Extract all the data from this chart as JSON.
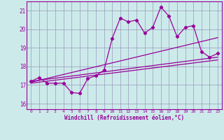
{
  "xlabel": "Windchill (Refroidissement éolien,°C)",
  "xlim": [
    -0.5,
    23.5
  ],
  "ylim": [
    15.7,
    21.5
  ],
  "yticks": [
    16,
    17,
    18,
    19,
    20,
    21
  ],
  "xticks": [
    0,
    1,
    2,
    3,
    4,
    5,
    6,
    7,
    8,
    9,
    10,
    11,
    12,
    13,
    14,
    15,
    16,
    17,
    18,
    19,
    20,
    21,
    22,
    23
  ],
  "bg_color": "#cceaea",
  "grid_color": "#9999bb",
  "line_color": "#990099",
  "data_x": [
    0,
    1,
    2,
    3,
    4,
    5,
    6,
    7,
    8,
    9,
    10,
    11,
    12,
    13,
    14,
    15,
    16,
    17,
    18,
    19,
    20,
    21,
    22,
    23
  ],
  "data_y": [
    17.2,
    17.4,
    17.1,
    17.1,
    17.1,
    16.6,
    16.55,
    17.35,
    17.5,
    17.8,
    19.5,
    20.6,
    20.4,
    20.5,
    19.8,
    20.1,
    21.2,
    20.7,
    19.6,
    20.1,
    20.2,
    18.8,
    18.5,
    18.7
  ],
  "line1_x": [
    0,
    23
  ],
  "line1_y": [
    17.2,
    18.5
  ],
  "line2_x": [
    0,
    23
  ],
  "line2_y": [
    17.15,
    19.55
  ],
  "line3_x": [
    0,
    23
  ],
  "line3_y": [
    17.1,
    18.35
  ]
}
